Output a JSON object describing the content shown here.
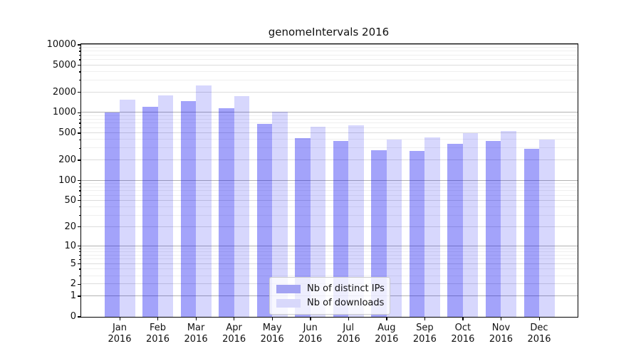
{
  "title": "genomeIntervals 2016",
  "colors": {
    "bar_distinct_ips": "rgba(0,0,240,0.36)",
    "bar_downloads": "rgba(0,0,240,0.155)",
    "legend_swatch_ips": "#a3a3f3",
    "legend_swatch_downloads": "#d8d8fb",
    "grid_major": "#b2b2b2",
    "grid_labeled": "#dcdcdc",
    "grid_minor": "#efefef"
  },
  "legend": {
    "entries": [
      {
        "label": "Nb of distinct IPs"
      },
      {
        "label": "Nb of downloads"
      }
    ]
  },
  "chart_data": {
    "type": "bar",
    "title": "genomeIntervals 2016",
    "xlabel": "",
    "ylabel": "",
    "yscale": "log1p",
    "ylim": [
      0,
      10000
    ],
    "yticks": [
      0,
      1,
      2,
      5,
      10,
      20,
      50,
      100,
      200,
      500,
      1000,
      2000,
      5000,
      10000
    ],
    "grid": true,
    "legend_position": "lower center",
    "categories": [
      "Jan",
      "Feb",
      "Mar",
      "Apr",
      "May",
      "Jun",
      "Jul",
      "Aug",
      "Sep",
      "Oct",
      "Nov",
      "Dec"
    ],
    "category_year": "2016",
    "series": [
      {
        "name": "Nb of distinct IPs",
        "values": [
          1000,
          1230,
          1490,
          1170,
          690,
          425,
          385,
          283,
          276,
          350,
          386,
          296
        ]
      },
      {
        "name": "Nb of downloads",
        "values": [
          1570,
          1810,
          2530,
          1770,
          1040,
          625,
          655,
          400,
          432,
          497,
          542,
          406
        ]
      }
    ]
  }
}
